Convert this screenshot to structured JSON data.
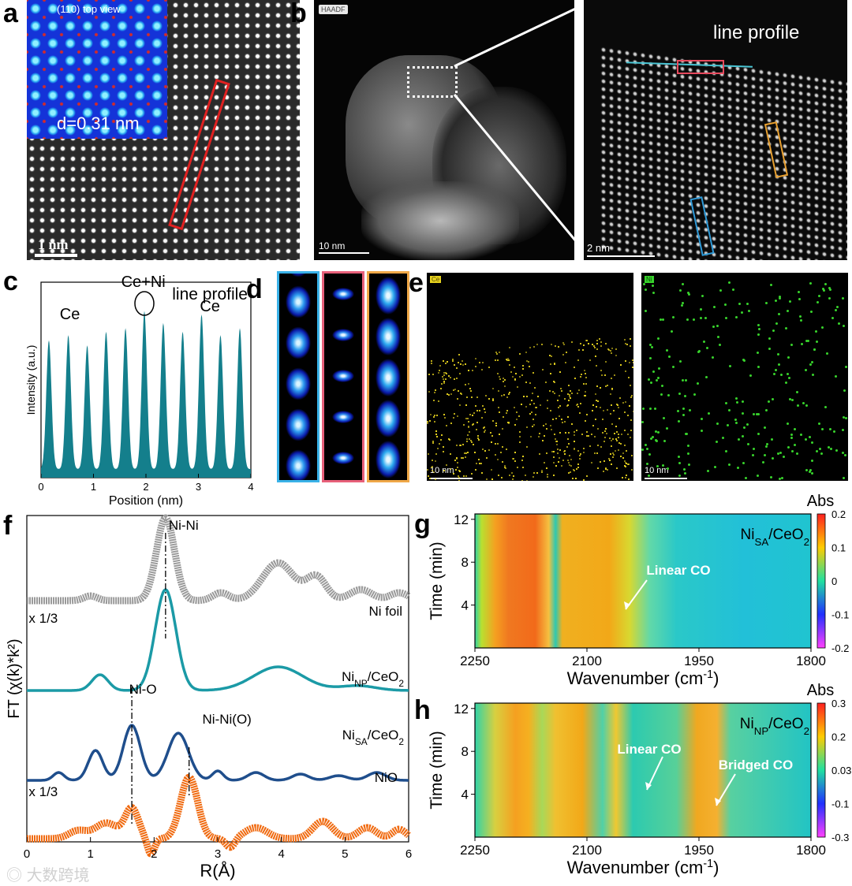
{
  "panel_labels": {
    "a": "a",
    "b": "b",
    "c": "c",
    "d": "d",
    "e": "e",
    "f": "f",
    "g": "g",
    "h": "h"
  },
  "panel_a": {
    "inset_title": "(110) top view",
    "inset_spacing": "d=0.31 nm",
    "scale_bar": "1 nm"
  },
  "panel_b": {
    "badge": "HAADF",
    "scale_bar_left": "10 nm",
    "title_right": "line profile",
    "scale_bar_right": "2 nm"
  },
  "panel_e": {
    "map_ce_label": "Ce",
    "map_ni_label": "Ni",
    "scale_bar": "10 nm",
    "colors": {
      "ce": "#e6d21e",
      "ni": "#38d42c"
    }
  },
  "watermark": "大数跨境",
  "chart_data": [
    {
      "id": "c",
      "type": "area",
      "title": "line profile",
      "xlabel": "Position (nm)",
      "ylabel": "Intensity (a.u.)",
      "xlim": [
        0,
        4
      ],
      "xticks": [
        "0",
        "1",
        "2",
        "3",
        "4"
      ],
      "peak_positions_nm": [
        0.15,
        0.52,
        0.88,
        1.24,
        1.61,
        1.97,
        2.33,
        2.7,
        3.06,
        3.42,
        3.79
      ],
      "peak_heights": [
        0.75,
        0.78,
        0.72,
        0.8,
        0.82,
        0.92,
        0.85,
        0.8,
        0.9,
        0.78,
        0.82
      ],
      "annotations": {
        "left": "Ce",
        "center": "Ce+Ni",
        "right": "Ce"
      },
      "fill_color": "#147f8c"
    },
    {
      "id": "f",
      "type": "line",
      "xlabel": "R(Å)",
      "ylabel": "FT (χ(k)*k²)",
      "xlim": [
        0,
        6
      ],
      "xticks": [
        "0",
        "1",
        "2",
        "3",
        "4",
        "5",
        "6"
      ],
      "series": [
        {
          "name": "Ni foil",
          "scale_note": "x 1/3",
          "color": "#9a9a9a"
        },
        {
          "name_main": "Ni",
          "name_sub": "NP",
          "name_rest": "/CeO",
          "name_sub2": "2",
          "color": "#1b9aa6"
        },
        {
          "name_main": "Ni",
          "name_sub": "SA",
          "name_rest": "/CeO",
          "name_sub2": "2",
          "color": "#1f4e8c"
        },
        {
          "name": "NiO",
          "scale_note": "x 1/3",
          "color": "#f06a10"
        }
      ],
      "annotations": {
        "nini": "Ni-Ni",
        "nio": "Ni-O",
        "ninio": "Ni-Ni(O)"
      },
      "reference_lines_R": [
        2.18,
        1.65,
        2.55
      ]
    },
    {
      "id": "g",
      "type": "heatmap",
      "title_main": "Ni",
      "title_sub": "SA",
      "title_rest": "/CeO",
      "title_sub2": "2",
      "xlabel": "Wavenumber (cm",
      "xlabel_sup": "-1",
      "xlabel_end": ")",
      "ylabel": "Time (min)",
      "xticks": [
        "2250",
        "2100",
        "1950",
        "1800"
      ],
      "yticks": [
        "4",
        "8",
        "12"
      ],
      "colorbar_title": "Abs",
      "colorbar_ticks": [
        "0.2",
        "0.1",
        "0",
        "-0.1",
        "-0.2"
      ],
      "annotation": "Linear CO"
    },
    {
      "id": "h",
      "type": "heatmap",
      "title_main": "Ni",
      "title_sub": "NP",
      "title_rest": "/CeO",
      "title_sub2": "2",
      "xlabel": "Wavenumber (cm",
      "xlabel_sup": "-1",
      "xlabel_end": ")",
      "ylabel": "Time (min)",
      "xticks": [
        "2250",
        "2100",
        "1950",
        "1800"
      ],
      "yticks": [
        "4",
        "8",
        "12"
      ],
      "colorbar_title": "Abs",
      "colorbar_ticks": [
        "0.3",
        "0.2",
        "0.03",
        "-0.1",
        "-0.3"
      ],
      "annotation_1": "Linear CO",
      "annotation_2": "Bridged CO"
    }
  ]
}
